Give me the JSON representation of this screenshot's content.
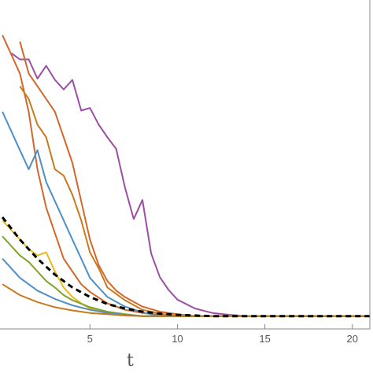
{
  "chart_data": {
    "type": "line",
    "xlabel": "t",
    "ylabel": "",
    "title": "",
    "xlim": [
      -0.5,
      21
    ],
    "ylim": [
      -0.2,
      5.0
    ],
    "x_ticks": [
      5,
      10,
      15,
      20
    ],
    "x_tick_labels": [
      "5",
      "10",
      "15",
      "20"
    ],
    "grid": false,
    "legend": "none",
    "frame_color": "#888888",
    "series": [
      {
        "color": "#9b4ea3",
        "style": "solid",
        "x": [
          0.5,
          1.0,
          1.5,
          2.0,
          2.5,
          3.0,
          3.5,
          4.0,
          4.5,
          5.0,
          5.5,
          6.0,
          6.5,
          7.0,
          7.5,
          8.0,
          8.5,
          9.0,
          9.5,
          10.0,
          11.0,
          12.0,
          13.0,
          14.0,
          21.0
        ],
        "y": [
          4.12,
          4.02,
          4.02,
          3.72,
          3.92,
          3.7,
          3.55,
          3.7,
          3.22,
          3.26,
          3.0,
          2.8,
          2.62,
          2.02,
          1.52,
          1.82,
          0.98,
          0.61,
          0.41,
          0.26,
          0.12,
          0.05,
          0.02,
          0.0,
          0.0
        ]
      },
      {
        "color": "#d4672a",
        "style": "solid",
        "x": [
          0.0,
          0.5,
          1.0,
          1.5,
          2.0,
          2.5,
          3.0,
          3.5,
          4.0,
          4.5,
          5.0,
          6.0,
          7.0,
          8.0,
          9.0,
          10.0,
          11.0,
          21.0
        ],
        "y": [
          4.4,
          4.1,
          3.8,
          3.2,
          2.3,
          1.7,
          1.3,
          0.9,
          0.7,
          0.5,
          0.38,
          0.2,
          0.1,
          0.05,
          0.02,
          0.01,
          0.0,
          0.0
        ]
      },
      {
        "color": "#d4672a",
        "style": "solid",
        "x": [
          1.0,
          1.5,
          2.0,
          2.5,
          3.0,
          3.5,
          4.0,
          4.5,
          5.0,
          5.5,
          6.0,
          6.5,
          7.0,
          8.0,
          9.0,
          10.0,
          11.0,
          21.0
        ],
        "y": [
          4.3,
          3.8,
          3.6,
          3.4,
          3.2,
          2.8,
          2.4,
          1.8,
          1.2,
          0.8,
          0.55,
          0.4,
          0.3,
          0.15,
          0.07,
          0.03,
          0.0,
          0.0
        ]
      },
      {
        "color": "#c87a1c",
        "style": "solid",
        "x": [
          1.0,
          1.5,
          2.0,
          2.5,
          3.0,
          3.5,
          4.0,
          4.5,
          5.0,
          5.5,
          6.0,
          6.5,
          7.0,
          8.0,
          9.0,
          10.0,
          21.0
        ],
        "y": [
          3.6,
          3.4,
          3.0,
          2.8,
          2.3,
          2.2,
          1.9,
          1.5,
          1.0,
          0.75,
          0.45,
          0.35,
          0.25,
          0.1,
          0.04,
          0.0,
          0.0
        ]
      },
      {
        "color": "#4f8fc4",
        "style": "solid",
        "x": [
          0.0,
          0.5,
          1.0,
          1.5,
          2.0,
          2.5,
          3.0,
          3.5,
          4.0,
          4.5,
          5.0,
          5.5,
          6.0,
          7.0,
          8.0,
          9.0,
          21.0
        ],
        "y": [
          3.2,
          2.9,
          2.6,
          2.3,
          2.6,
          2.1,
          1.8,
          1.5,
          1.2,
          0.9,
          0.6,
          0.45,
          0.3,
          0.15,
          0.06,
          0.0,
          0.0
        ]
      },
      {
        "color": "#e8b81e",
        "style": "solid",
        "x": [
          0.0,
          0.5,
          1.0,
          1.5,
          2.0,
          2.5,
          3.0,
          3.5,
          4.0,
          4.5,
          5.0,
          6.0,
          7.0,
          8.0,
          21.0
        ],
        "y": [
          1.5,
          1.35,
          1.2,
          1.05,
          0.95,
          1.0,
          0.7,
          0.45,
          0.3,
          0.2,
          0.12,
          0.06,
          0.03,
          0.0,
          0.0
        ]
      },
      {
        "color": "#7fa22b",
        "style": "solid",
        "x": [
          0.0,
          0.5,
          1.0,
          1.5,
          2.0,
          2.5,
          3.0,
          3.5,
          4.0,
          5.0,
          6.0,
          7.0,
          8.0,
          21.0
        ],
        "y": [
          1.25,
          1.1,
          0.95,
          0.85,
          0.7,
          0.55,
          0.45,
          0.33,
          0.25,
          0.14,
          0.07,
          0.03,
          0.0,
          0.0
        ]
      },
      {
        "color": "#4f8fc4",
        "style": "solid",
        "x": [
          0.0,
          1.0,
          2.0,
          3.0,
          4.0,
          5.0,
          6.0,
          7.0,
          8.0,
          21.0
        ],
        "y": [
          0.9,
          0.6,
          0.4,
          0.27,
          0.17,
          0.1,
          0.05,
          0.02,
          0.0,
          0.0
        ]
      },
      {
        "color": "#c87a1c",
        "style": "solid",
        "x": [
          0.0,
          1.0,
          2.0,
          3.0,
          4.0,
          5.0,
          6.0,
          7.0,
          8.0,
          21.0
        ],
        "y": [
          0.5,
          0.33,
          0.22,
          0.14,
          0.09,
          0.05,
          0.03,
          0.01,
          0.0,
          0.0
        ]
      },
      {
        "color": "#000000",
        "style": "dashed",
        "x": [
          0.0,
          1.0,
          2.0,
          3.0,
          4.0,
          5.0,
          6.0,
          7.0,
          8.0,
          9.0,
          10.0,
          12.0,
          14.0,
          21.0
        ],
        "y": [
          1.55,
          1.2,
          0.9,
          0.65,
          0.45,
          0.3,
          0.19,
          0.12,
          0.07,
          0.04,
          0.02,
          0.0,
          0.0,
          0.0
        ]
      }
    ]
  }
}
